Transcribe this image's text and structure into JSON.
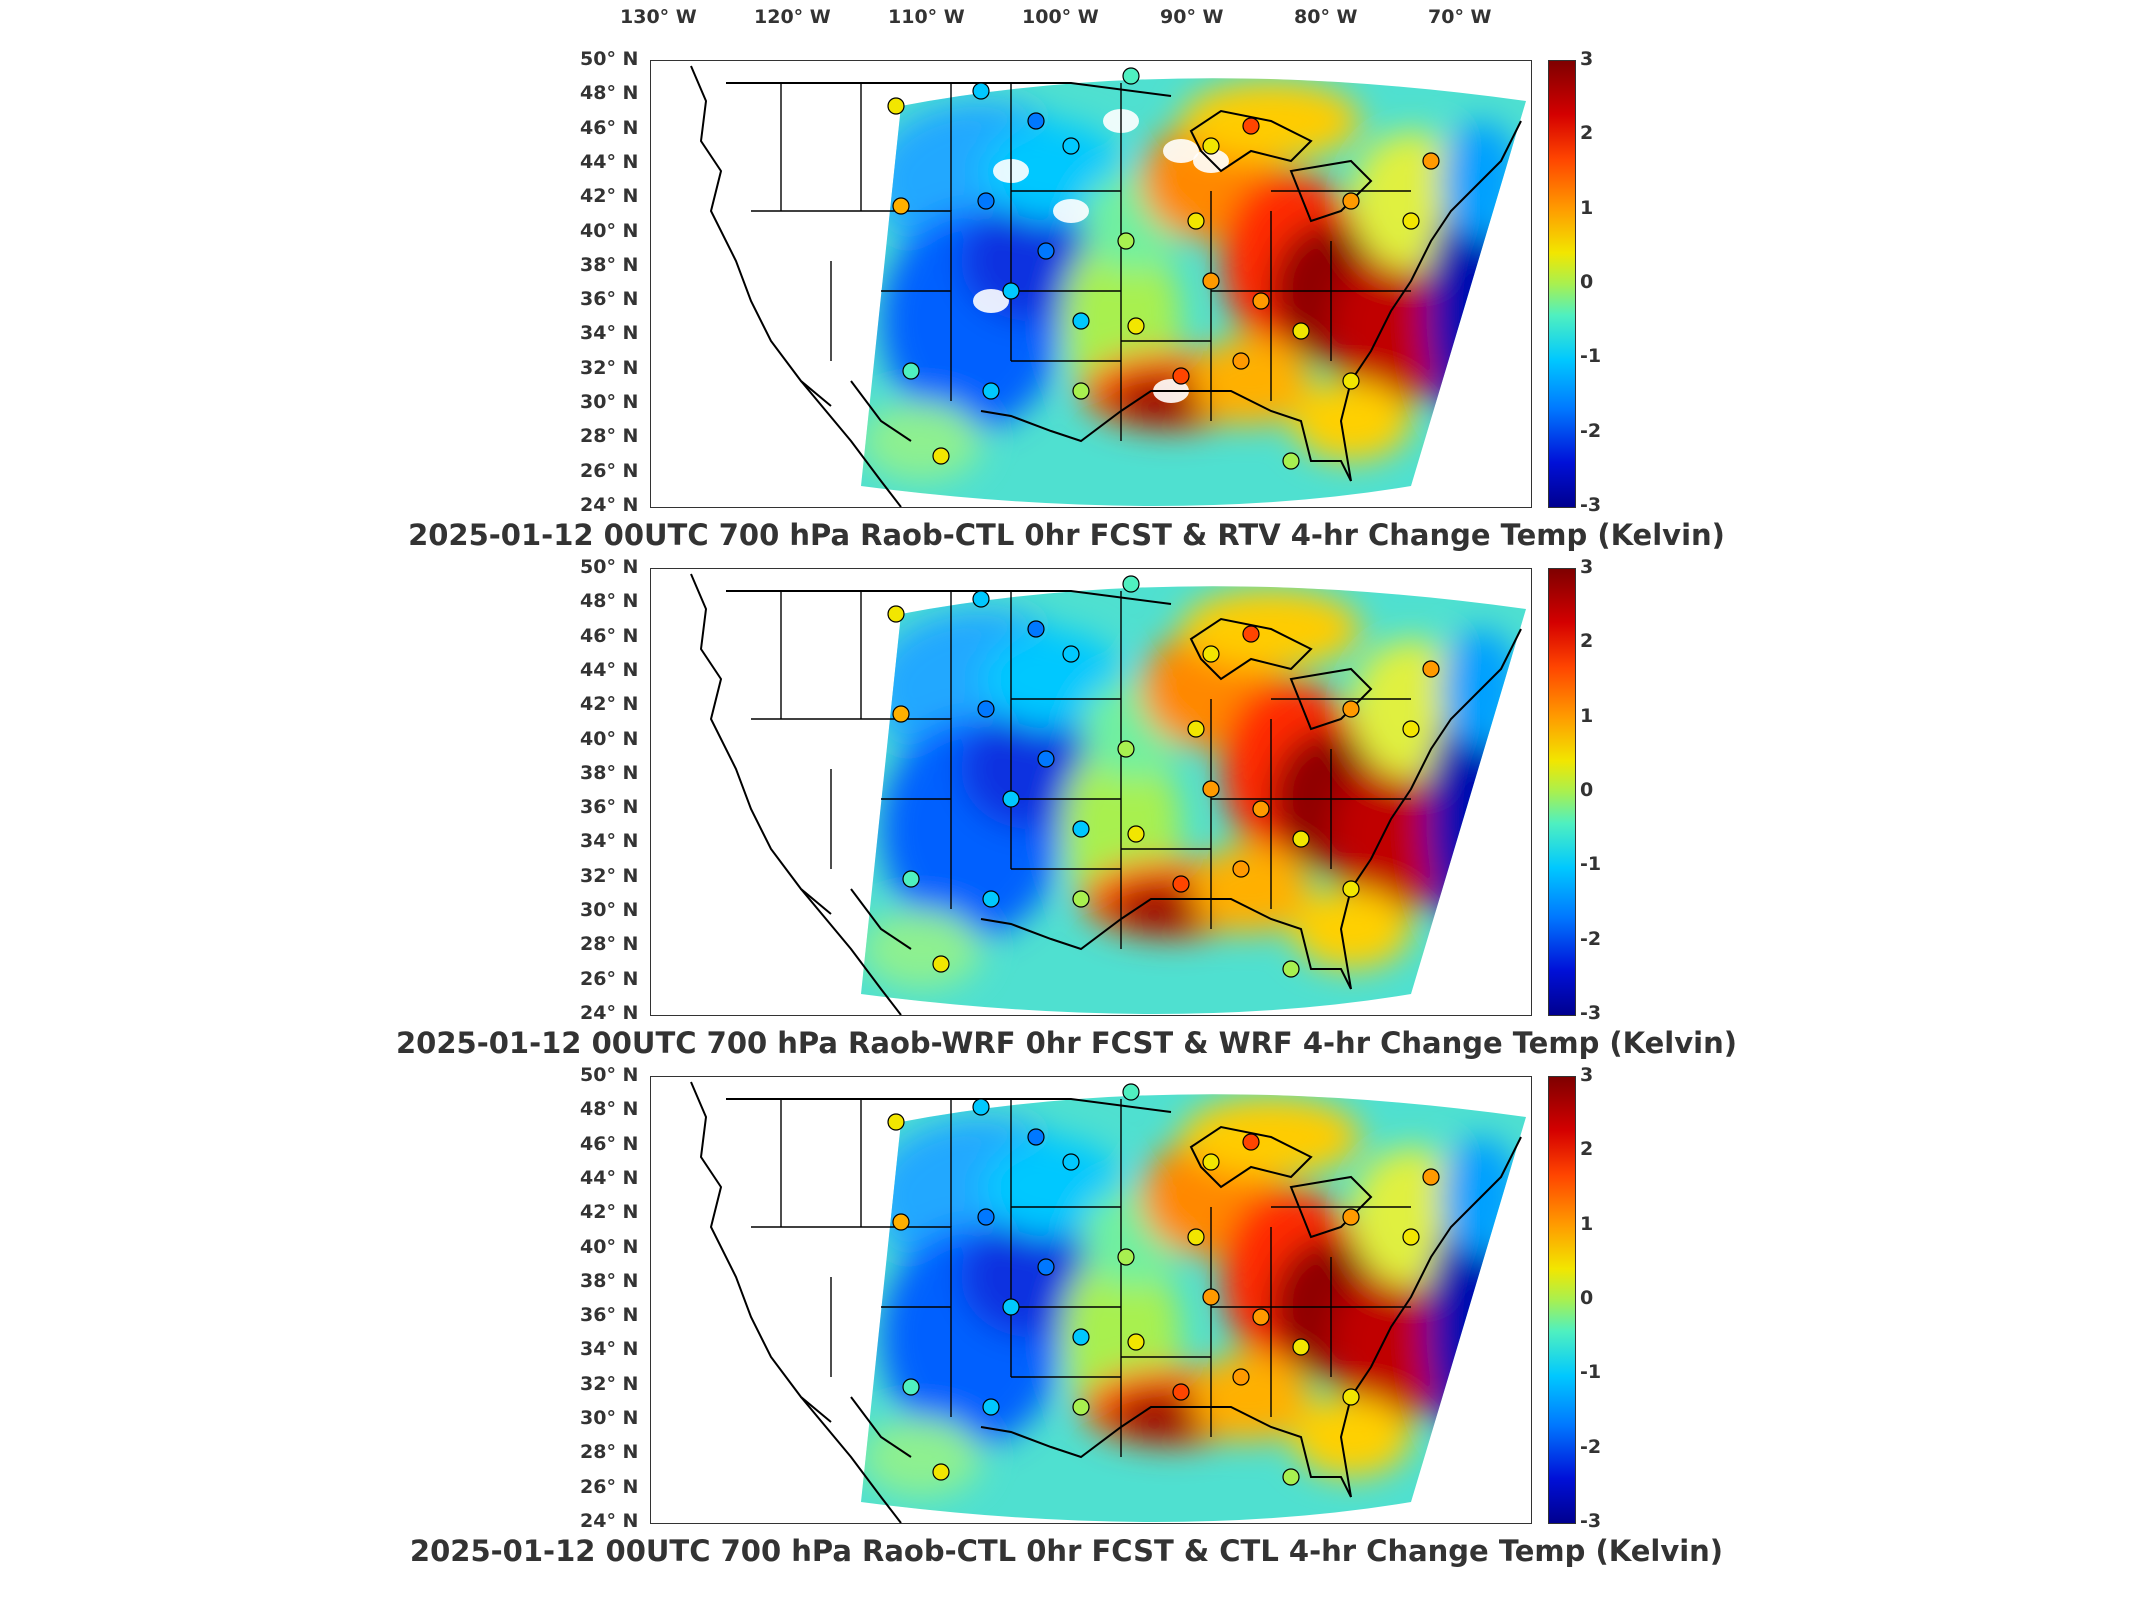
{
  "lon_labels": [
    "130° W",
    "120° W",
    "110° W",
    "100° W",
    "90° W",
    "80° W",
    "70° W"
  ],
  "lat_labels": [
    "50° N",
    "48° N",
    "46° N",
    "44° N",
    "42° N",
    "40° N",
    "38° N",
    "36° N",
    "34° N",
    "32° N",
    "30° N",
    "28° N",
    "26° N",
    "24° N"
  ],
  "colorbar_ticks": [
    "3",
    "2",
    "1",
    "0",
    "-1",
    "-2",
    "-3"
  ],
  "panels": [
    {
      "title": "2025-01-12 00UTC 700 hPa Raob-CTL 0hr FCST & RTV 4-hr Change Temp (Kelvin)"
    },
    {
      "title": "2025-01-12 00UTC 700 hPa Raob-WRF 0hr FCST & WRF 4-hr Change Temp (Kelvin)"
    },
    {
      "title": "2025-01-12 00UTC 700 hPa Raob-CTL 0hr FCST & CTL 4-hr Change Temp (Kelvin)"
    }
  ],
  "colors": {
    "max": "#7f0000",
    "warm": "#ff4500",
    "neutral": "#a8f050",
    "cool": "#00c8ff",
    "min": "#00008f"
  },
  "colorbar_range": [
    -3,
    3
  ]
}
